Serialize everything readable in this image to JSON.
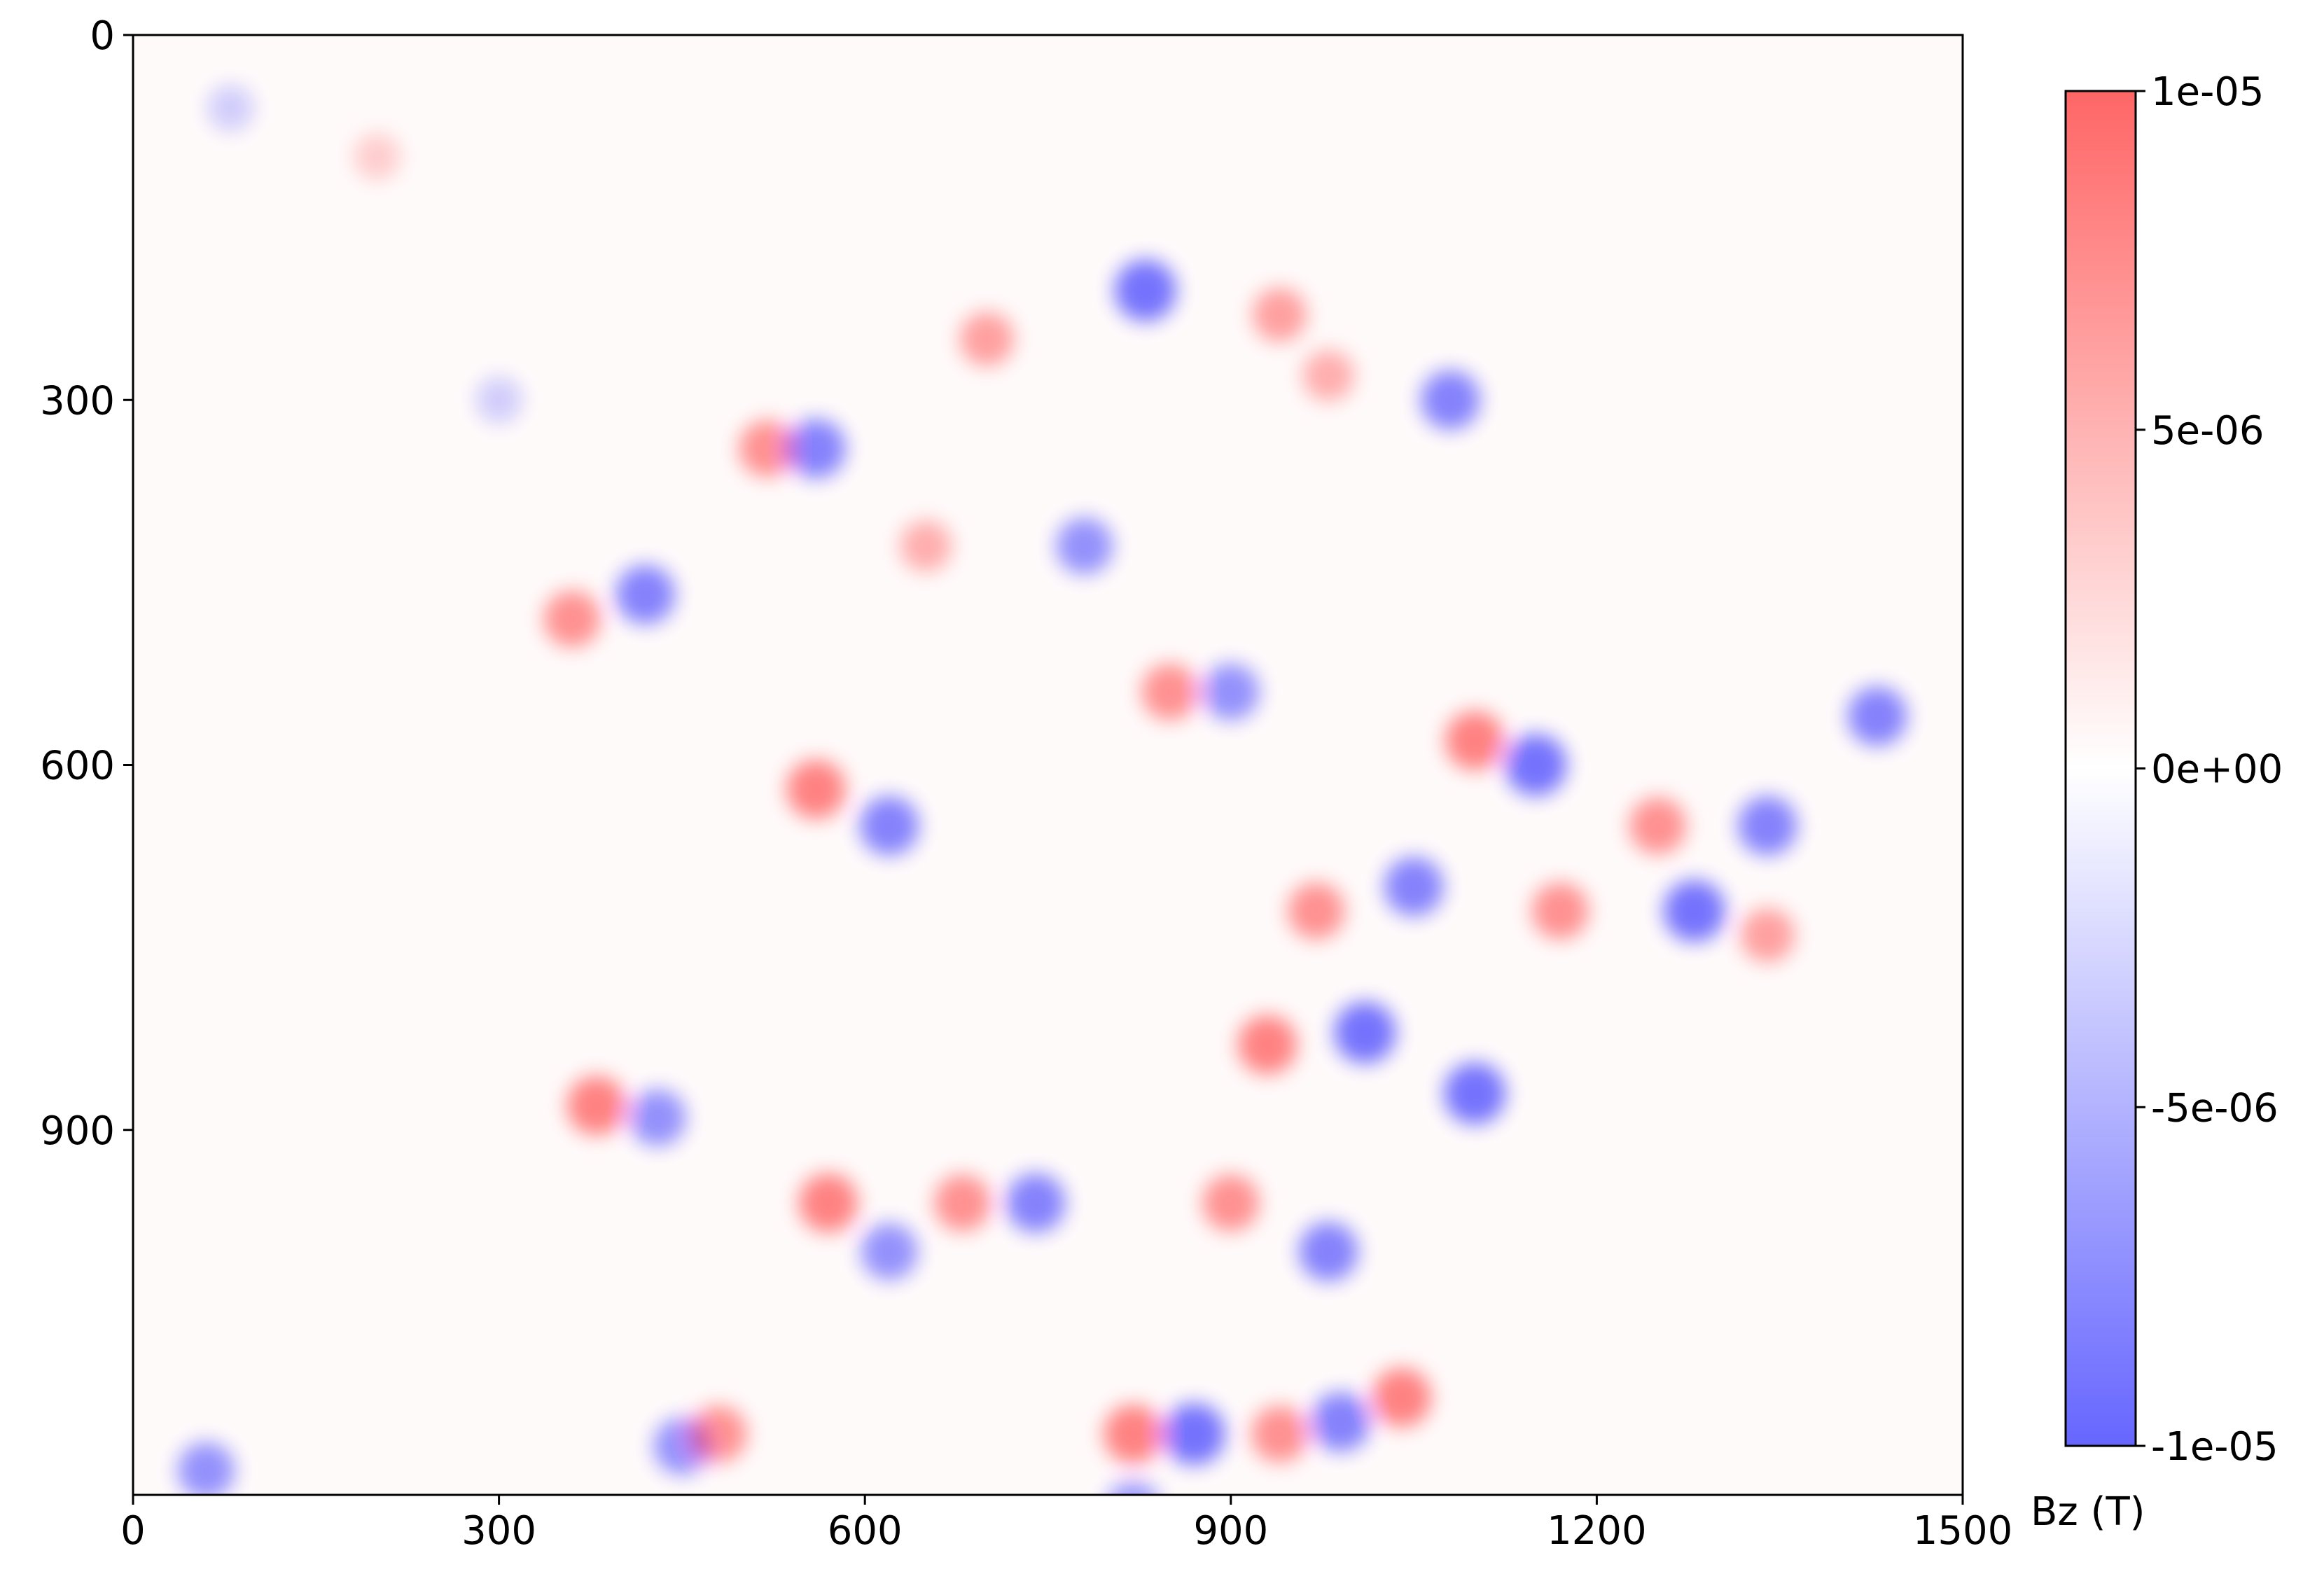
{
  "chart_data": {
    "type": "heatmap",
    "title": "",
    "xlabel": "",
    "ylabel": "",
    "xlim": [
      0,
      1500
    ],
    "ylim": [
      1200,
      0
    ],
    "x_ticks": [
      0,
      300,
      600,
      900,
      1200,
      1500
    ],
    "x_tick_labels": [
      "0",
      "300",
      "600",
      "900",
      "1200",
      "1500"
    ],
    "y_ticks": [
      0,
      300,
      600,
      900
    ],
    "y_tick_labels": [
      "0",
      "300",
      "600",
      "900"
    ],
    "grid": false,
    "colormap": {
      "name": "bwr",
      "low_color": "#0000ff",
      "mid_color": "#ffffff",
      "high_color": "#ff0000",
      "alpha": 0.6
    },
    "colorbar": {
      "label": "Bz (T)",
      "vmin": -1e-05,
      "vmax": 1e-05,
      "ticks": [
        -1e-05,
        -5e-06,
        0,
        5e-06,
        1e-05
      ],
      "tick_labels": [
        "-1e-05",
        "-5e-06",
        "0e+00",
        "5e-06",
        "1e-05"
      ]
    },
    "features": [
      {
        "x": 830,
        "y": 210,
        "value": -9e-06
      },
      {
        "x": 940,
        "y": 230,
        "value": 6e-06
      },
      {
        "x": 1080,
        "y": 300,
        "value": -8e-06
      },
      {
        "x": 980,
        "y": 280,
        "value": 5e-06
      },
      {
        "x": 700,
        "y": 250,
        "value": 6e-06
      },
      {
        "x": 520,
        "y": 340,
        "value": 7e-06
      },
      {
        "x": 560,
        "y": 340,
        "value": -8e-06
      },
      {
        "x": 650,
        "y": 420,
        "value": 5e-06
      },
      {
        "x": 780,
        "y": 420,
        "value": -7e-06
      },
      {
        "x": 360,
        "y": 480,
        "value": 7e-06
      },
      {
        "x": 420,
        "y": 460,
        "value": -8e-06
      },
      {
        "x": 850,
        "y": 540,
        "value": 7e-06
      },
      {
        "x": 900,
        "y": 540,
        "value": -7e-06
      },
      {
        "x": 1100,
        "y": 580,
        "value": 8e-06
      },
      {
        "x": 1150,
        "y": 600,
        "value": -9e-06
      },
      {
        "x": 1250,
        "y": 650,
        "value": 7e-06
      },
      {
        "x": 1340,
        "y": 650,
        "value": -8e-06
      },
      {
        "x": 1280,
        "y": 720,
        "value": -9e-06
      },
      {
        "x": 560,
        "y": 620,
        "value": 8e-06
      },
      {
        "x": 620,
        "y": 650,
        "value": -8e-06
      },
      {
        "x": 1050,
        "y": 700,
        "value": -8e-06
      },
      {
        "x": 970,
        "y": 720,
        "value": 7e-06
      },
      {
        "x": 930,
        "y": 830,
        "value": 8e-06
      },
      {
        "x": 1010,
        "y": 820,
        "value": -9e-06
      },
      {
        "x": 1100,
        "y": 870,
        "value": -9e-06
      },
      {
        "x": 1170,
        "y": 720,
        "value": 7e-06
      },
      {
        "x": 1430,
        "y": 560,
        "value": -8e-06
      },
      {
        "x": 1340,
        "y": 740,
        "value": 6e-06
      },
      {
        "x": 380,
        "y": 880,
        "value": 8e-06
      },
      {
        "x": 430,
        "y": 890,
        "value": -7e-06
      },
      {
        "x": 570,
        "y": 960,
        "value": 8e-06
      },
      {
        "x": 620,
        "y": 1000,
        "value": -7e-06
      },
      {
        "x": 740,
        "y": 960,
        "value": -8e-06
      },
      {
        "x": 680,
        "y": 960,
        "value": 7e-06
      },
      {
        "x": 900,
        "y": 960,
        "value": 7e-06
      },
      {
        "x": 980,
        "y": 1000,
        "value": -8e-06
      },
      {
        "x": 820,
        "y": 1150,
        "value": 8e-06
      },
      {
        "x": 870,
        "y": 1150,
        "value": -9e-06
      },
      {
        "x": 940,
        "y": 1150,
        "value": 7e-06
      },
      {
        "x": 990,
        "y": 1140,
        "value": -8e-06
      },
      {
        "x": 1040,
        "y": 1120,
        "value": 8e-06
      },
      {
        "x": 60,
        "y": 1180,
        "value": -7e-06
      },
      {
        "x": 450,
        "y": 1160,
        "value": -7e-06
      },
      {
        "x": 480,
        "y": 1150,
        "value": 7e-06
      },
      {
        "x": 200,
        "y": 100,
        "value": 3e-06
      },
      {
        "x": 80,
        "y": 60,
        "value": -3e-06
      },
      {
        "x": 820,
        "y": 1210,
        "value": -6e-06
      },
      {
        "x": 300,
        "y": 300,
        "value": -3e-06
      }
    ]
  }
}
